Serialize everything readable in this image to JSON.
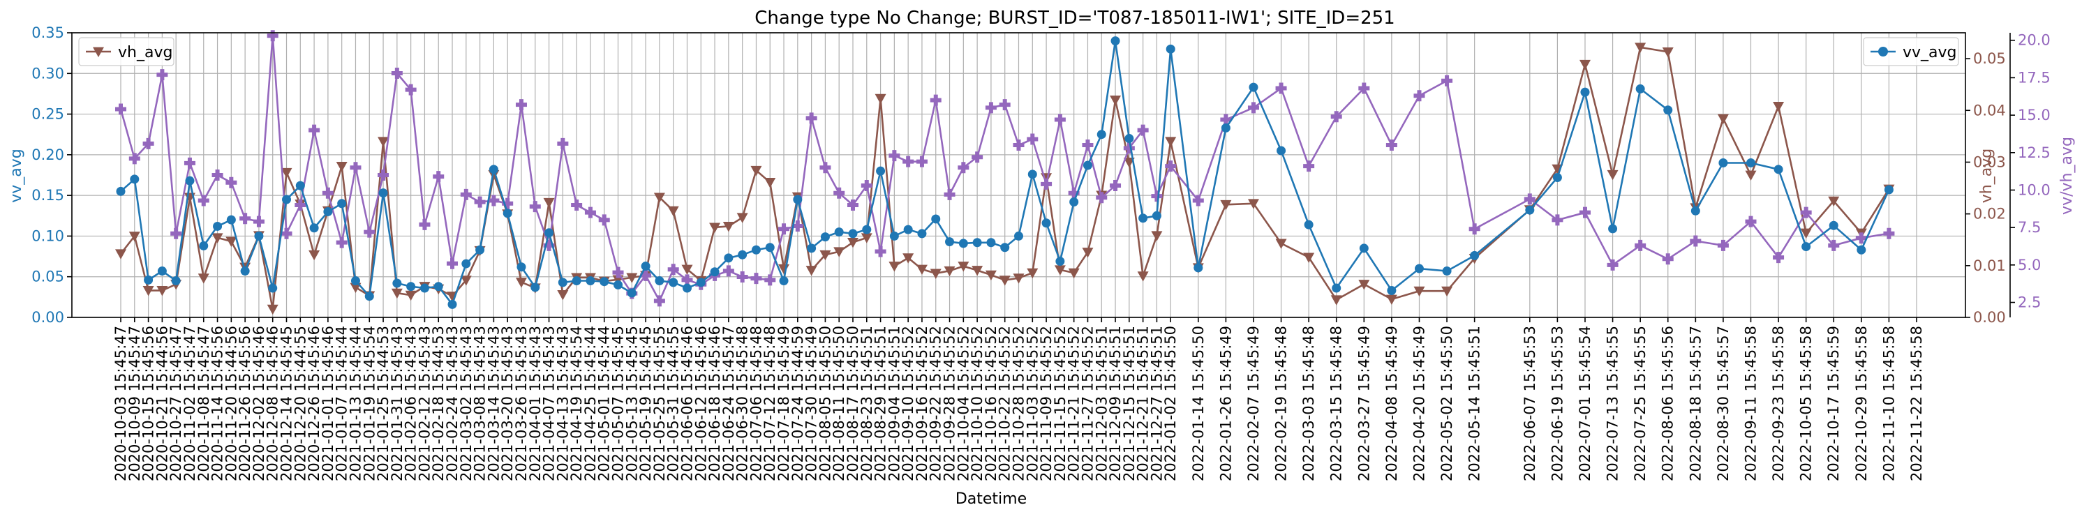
{
  "chart_data": {
    "type": "line",
    "title": "Change type No Change; BURST_ID='T087-185011-IW1'; SITE_ID=251",
    "xlabel": "Datetime",
    "ylabel_left": "vv_avg",
    "ylabel_right1": "vh_avg",
    "ylabel_right2": "vv/vh_avg",
    "ylim_left": [
      0.0,
      0.35
    ],
    "ylim_right1": [
      0.0,
      0.055
    ],
    "ylim_right2": [
      1.5,
      20.5
    ],
    "yticks_left": [
      "0.00",
      "0.05",
      "0.10",
      "0.15",
      "0.20",
      "0.25",
      "0.30",
      "0.35"
    ],
    "yticks_right1": [
      "0.00",
      "0.01",
      "0.02",
      "0.03",
      "0.04",
      "0.05"
    ],
    "yticks_right2": [
      "2.5",
      "5.0",
      "7.5",
      "10.0",
      "12.5",
      "15.0",
      "17.5",
      "20.0"
    ],
    "grid": true,
    "legend_left": "top-left",
    "legend_right": "top-right",
    "colors": {
      "vv": "#1f77b4",
      "vh": "#8c564b",
      "ratio": "#9467bd",
      "axis": "#000000",
      "grid": "#b0b0b0"
    },
    "xticks": [
      "2020-10-03 15:45:47",
      "2020-10-09 15:45:47",
      "2020-10-15 15:45:56",
      "2020-10-21 15:44:56",
      "2020-10-27 15:45:47",
      "2020-11-02 15:45:47",
      "2020-11-08 15:45:47",
      "2020-11-14 15:45:56",
      "2020-11-20 15:44:56",
      "2020-11-26 15:45:56",
      "2020-12-02 15:45:46",
      "2020-12-08 15:45:46",
      "2020-12-14 15:45:45",
      "2020-12-20 15:44:55",
      "2020-12-26 15:45:46",
      "2021-01-01 15:45:46",
      "2021-01-07 15:45:44",
      "2021-01-13 15:45:44",
      "2021-01-19 15:45:54",
      "2021-01-25 15:44:53",
      "2021-01-31 15:45:43",
      "2021-02-06 15:45:43",
      "2021-02-12 15:45:43",
      "2021-02-18 15:44:53",
      "2021-02-24 15:45:43",
      "2021-03-02 15:45:43",
      "2021-03-08 15:45:43",
      "2021-03-14 15:45:43",
      "2021-03-20 15:45:43",
      "2021-03-26 15:45:43",
      "2021-04-01 15:45:43",
      "2021-04-07 15:45:43",
      "2021-04-13 15:45:43",
      "2021-04-19 15:45:54",
      "2021-04-25 15:45:44",
      "2021-05-01 15:45:44",
      "2021-05-07 15:45:45",
      "2021-05-13 15:45:45",
      "2021-05-19 15:45:45",
      "2021-05-25 15:45:55",
      "2021-05-31 15:44:55",
      "2021-06-06 15:45:46",
      "2021-06-12 15:45:46",
      "2021-06-18 15:45:46",
      "2021-06-24 15:45:47",
      "2021-06-30 15:45:48",
      "2021-07-06 15:45:48",
      "2021-07-12 15:45:48",
      "2021-07-18 15:45:49",
      "2021-07-24 15:44:59",
      "2021-07-30 15:45:49",
      "2021-08-05 15:45:50",
      "2021-08-11 15:45:50",
      "2021-08-17 15:45:50",
      "2021-08-23 15:45:51",
      "2021-08-29 15:45:51",
      "2021-09-04 15:45:51",
      "2021-09-10 15:45:52",
      "2021-09-16 15:45:52",
      "2021-09-22 15:45:52",
      "2021-09-28 15:45:52",
      "2021-10-04 15:45:52",
      "2021-10-10 15:45:52",
      "2021-10-16 15:45:52",
      "2021-10-22 15:45:52",
      "2021-10-28 15:45:52",
      "2021-11-03 15:45:52",
      "2021-11-09 15:45:52",
      "2021-11-15 15:45:52",
      "2021-11-21 15:45:52",
      "2021-11-27 15:45:52",
      "2021-12-03 15:45:51",
      "2021-12-09 15:45:51",
      "2021-12-15 15:45:51",
      "2021-12-21 15:45:51",
      "2021-12-27 15:45:51",
      "2022-01-02 15:45:50",
      "2022-01-14 15:45:50",
      "2022-01-26 15:45:49",
      "2022-02-07 15:45:49",
      "2022-02-19 15:45:48",
      "2022-03-03 15:45:48",
      "2022-03-15 15:45:48",
      "2022-03-27 15:45:49",
      "2022-04-08 15:45:49",
      "2022-04-20 15:45:49",
      "2022-05-02 15:45:50",
      "2022-05-14 15:45:51",
      "2022-06-07 15:45:53",
      "2022-06-19 15:45:53",
      "2022-07-01 15:45:54",
      "2022-07-13 15:45:55",
      "2022-07-25 15:45:55",
      "2022-08-06 15:45:56",
      "2022-08-18 15:45:57",
      "2022-08-30 15:45:57",
      "2022-09-11 15:45:58",
      "2022-09-23 15:45:58",
      "2022-10-05 15:45:58",
      "2022-10-17 15:45:59",
      "2022-10-29 15:45:58",
      "2022-11-10 15:45:58",
      "2022-11-22 15:45:58"
    ],
    "x_dates": [
      "2020-10-03",
      "2020-10-09",
      "2020-10-15",
      "2020-10-21",
      "2020-10-27",
      "2020-11-02",
      "2020-11-08",
      "2020-11-14",
      "2020-11-20",
      "2020-11-26",
      "2020-12-02",
      "2020-12-08",
      "2020-12-14",
      "2020-12-20",
      "2020-12-26",
      "2021-01-01",
      "2021-01-07",
      "2021-01-13",
      "2021-01-19",
      "2021-01-25",
      "2021-01-31",
      "2021-02-06",
      "2021-02-12",
      "2021-02-18",
      "2021-02-24",
      "2021-03-02",
      "2021-03-08",
      "2021-03-14",
      "2021-03-20",
      "2021-03-26",
      "2021-04-01",
      "2021-04-07",
      "2021-04-13",
      "2021-04-19",
      "2021-04-25",
      "2021-05-01",
      "2021-05-07",
      "2021-05-13",
      "2021-05-19",
      "2021-05-25",
      "2021-05-31",
      "2021-06-06",
      "2021-06-12",
      "2021-06-18",
      "2021-06-24",
      "2021-06-30",
      "2021-07-06",
      "2021-07-12",
      "2021-07-18",
      "2021-07-24",
      "2021-07-30",
      "2021-08-05",
      "2021-08-11",
      "2021-08-17",
      "2021-08-23",
      "2021-08-29",
      "2021-09-04",
      "2021-09-10",
      "2021-09-16",
      "2021-09-22",
      "2021-09-28",
      "2021-10-04",
      "2021-10-10",
      "2021-10-16",
      "2021-10-22",
      "2021-10-28",
      "2021-11-03",
      "2021-11-09",
      "2021-11-15",
      "2021-11-21",
      "2021-11-27",
      "2021-12-03",
      "2021-12-09",
      "2021-12-15",
      "2021-12-21",
      "2021-12-27",
      "2022-01-02",
      "2022-01-14",
      "2022-01-26",
      "2022-02-07",
      "2022-02-19",
      "2022-03-03",
      "2022-03-15",
      "2022-03-27",
      "2022-04-08",
      "2022-04-20",
      "2022-05-02",
      "2022-05-14",
      "2022-06-07",
      "2022-06-19",
      "2022-07-01",
      "2022-07-13",
      "2022-07-25",
      "2022-08-06",
      "2022-08-18",
      "2022-08-30",
      "2022-09-11",
      "2022-09-23",
      "2022-10-05",
      "2022-10-17",
      "2022-10-29",
      "2022-11-10",
      "2022-11-22"
    ],
    "series": [
      {
        "name": "vv_avg",
        "axis": "left",
        "marker": "circle",
        "values": [
          0.155,
          0.17,
          0.046,
          0.057,
          0.045,
          0.168,
          0.088,
          0.112,
          0.12,
          0.057,
          0.1,
          0.036,
          0.145,
          0.162,
          0.11,
          0.13,
          0.14,
          0.045,
          0.026,
          0.153,
          0.042,
          0.038,
          0.036,
          0.038,
          0.016,
          0.066,
          0.083,
          0.182,
          0.128,
          0.062,
          0.037,
          0.104,
          0.043,
          0.045,
          0.045,
          0.044,
          0.04,
          0.03,
          0.063,
          0.045,
          0.043,
          0.036,
          0.043,
          0.056,
          0.073,
          0.077,
          0.083,
          0.086,
          0.045,
          0.145,
          0.085,
          0.099,
          0.105,
          0.103,
          0.108,
          0.18,
          0.1,
          0.108,
          0.103,
          0.121,
          0.093,
          0.091,
          0.092,
          0.092,
          0.086,
          0.1,
          0.176,
          0.116,
          0.069,
          0.142,
          0.187,
          0.225,
          0.34,
          0.22,
          0.122,
          0.125,
          0.33,
          0.061,
          0.233,
          0.283,
          0.205,
          0.114,
          0.036,
          0.085,
          0.033,
          0.06,
          0.057,
          0.076,
          0.132,
          0.172,
          0.277,
          0.109,
          0.281,
          0.255,
          0.131,
          0.19,
          0.19,
          0.182,
          0.087,
          0.113,
          0.083,
          0.157
        ]
      },
      {
        "name": "vh_avg",
        "axis": "right1",
        "marker": "triangle-down",
        "values": [
          0.0123,
          0.0157,
          0.0052,
          0.0052,
          0.0064,
          0.0232,
          0.0076,
          0.0154,
          0.0147,
          0.0097,
          0.0158,
          0.0016,
          0.028,
          0.0219,
          0.0121,
          0.0206,
          0.0292,
          0.0058,
          0.0042,
          0.034,
          0.0047,
          0.0043,
          0.006,
          0.0055,
          0.0041,
          0.0072,
          0.0129,
          0.0276,
          0.02,
          0.0068,
          0.0057,
          0.0222,
          0.0044,
          0.0077,
          0.0077,
          0.007,
          0.0073,
          0.0077,
          0.0081,
          0.0232,
          0.0206,
          0.0093,
          0.0071,
          0.0174,
          0.0176,
          0.0193,
          0.0284,
          0.0261,
          0.0094,
          0.0233,
          0.0091,
          0.0121,
          0.0127,
          0.0145,
          0.0154,
          0.0423,
          0.0099,
          0.0115,
          0.0093,
          0.0085,
          0.009,
          0.0099,
          0.0091,
          0.0082,
          0.0072,
          0.0076,
          0.0086,
          0.027,
          0.0092,
          0.0086,
          0.0126,
          0.0236,
          0.042,
          0.03,
          0.008,
          0.0158,
          0.034,
          0.0096,
          0.0218,
          0.022,
          0.0143,
          0.0116,
          0.0034,
          0.0064,
          0.0035,
          0.0051,
          0.0051,
          0.0114,
          0.0208,
          0.0287,
          0.0489,
          0.0276,
          0.0522,
          0.0513,
          0.0212,
          0.0384,
          0.0275,
          0.0408,
          0.0163,
          0.0225,
          0.0163,
          0.0248
        ]
      },
      {
        "name": "vv/vh_avg",
        "axis": "right2",
        "marker": "plus",
        "values": [
          15.4,
          12.1,
          13.1,
          17.7,
          7.1,
          11.8,
          9.3,
          11.0,
          10.5,
          8.1,
          7.9,
          20.3,
          7.1,
          9.0,
          14.0,
          9.8,
          6.5,
          11.5,
          7.2,
          11.0,
          17.8,
          16.7,
          7.7,
          10.9,
          5.1,
          9.7,
          9.2,
          9.3,
          9.1,
          15.7,
          8.9,
          6.3,
          13.1,
          9.0,
          8.5,
          8.0,
          4.5,
          3.1,
          4.3,
          2.6,
          4.7,
          4.0,
          3.7,
          4.3,
          4.6,
          4.2,
          4.1,
          4.0,
          7.4,
          7.6,
          14.8,
          11.5,
          9.8,
          9.0,
          10.3,
          5.9,
          12.3,
          11.9,
          11.9,
          16.0,
          9.7,
          11.5,
          12.2,
          15.5,
          15.7,
          13.0,
          13.4,
          10.4,
          14.7,
          9.8,
          13.0,
          9.5,
          10.3,
          12.8,
          14.0,
          9.6,
          11.6,
          9.3,
          14.7,
          15.5,
          16.8,
          11.6,
          14.9,
          16.8,
          13.0,
          16.3,
          17.3,
          7.4,
          9.4,
          8.0,
          8.5,
          5.0,
          6.3,
          5.4,
          6.6,
          6.3,
          7.9,
          5.5,
          8.5,
          6.3,
          6.8,
          7.1
        ]
      }
    ]
  }
}
